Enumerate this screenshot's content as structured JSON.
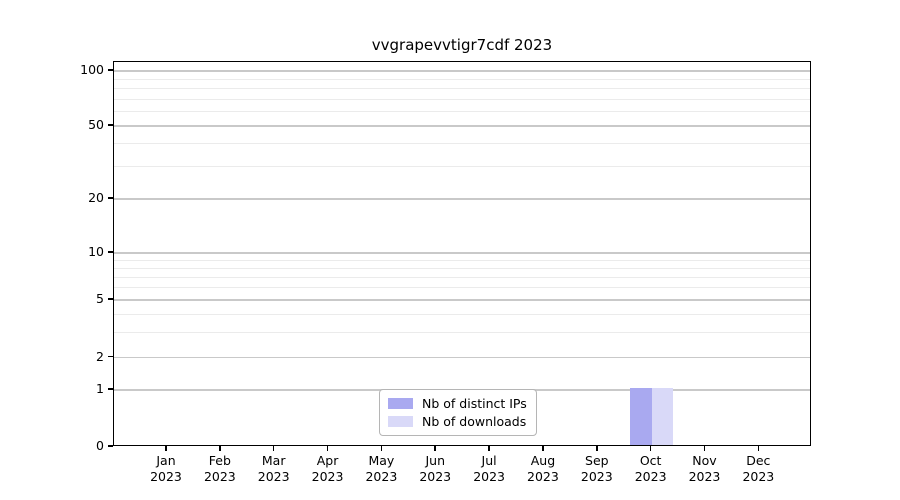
{
  "chart_data": {
    "type": "bar",
    "title": "vvgrapevvtigr7cdf 2023",
    "x_categories": [
      {
        "month": "Jan",
        "year": "2023"
      },
      {
        "month": "Feb",
        "year": "2023"
      },
      {
        "month": "Mar",
        "year": "2023"
      },
      {
        "month": "Apr",
        "year": "2023"
      },
      {
        "month": "May",
        "year": "2023"
      },
      {
        "month": "Jun",
        "year": "2023"
      },
      {
        "month": "Jul",
        "year": "2023"
      },
      {
        "month": "Aug",
        "year": "2023"
      },
      {
        "month": "Sep",
        "year": "2023"
      },
      {
        "month": "Oct",
        "year": "2023"
      },
      {
        "month": "Nov",
        "year": "2023"
      },
      {
        "month": "Dec",
        "year": "2023"
      }
    ],
    "series": [
      {
        "name": "Nb of distinct IPs",
        "color": "#a9a9f0",
        "values": [
          0,
          0,
          0,
          0,
          0,
          0,
          0,
          0,
          0,
          1,
          0,
          0
        ]
      },
      {
        "name": "Nb of downloads",
        "color": "#d9d9f8",
        "values": [
          0,
          0,
          0,
          0,
          0,
          0,
          0,
          0,
          0,
          1,
          0,
          0
        ]
      }
    ],
    "y_axis": {
      "major_ticks": [
        100,
        50,
        20,
        10,
        5,
        2,
        1,
        0
      ],
      "minor_gridline_values": [
        3,
        4,
        6,
        7,
        8,
        9,
        30,
        40,
        60,
        70,
        80,
        90
      ],
      "scale": "log above 1, linear 0-1",
      "ylim": [
        0,
        110
      ]
    },
    "legend": {
      "position": "inside-bottom-center"
    },
    "colors": {
      "major_grid": "#c9c9c9",
      "minor_grid": "#ebebeb",
      "spine": "#000000",
      "text": "#000000",
      "background": "#ffffff"
    }
  }
}
